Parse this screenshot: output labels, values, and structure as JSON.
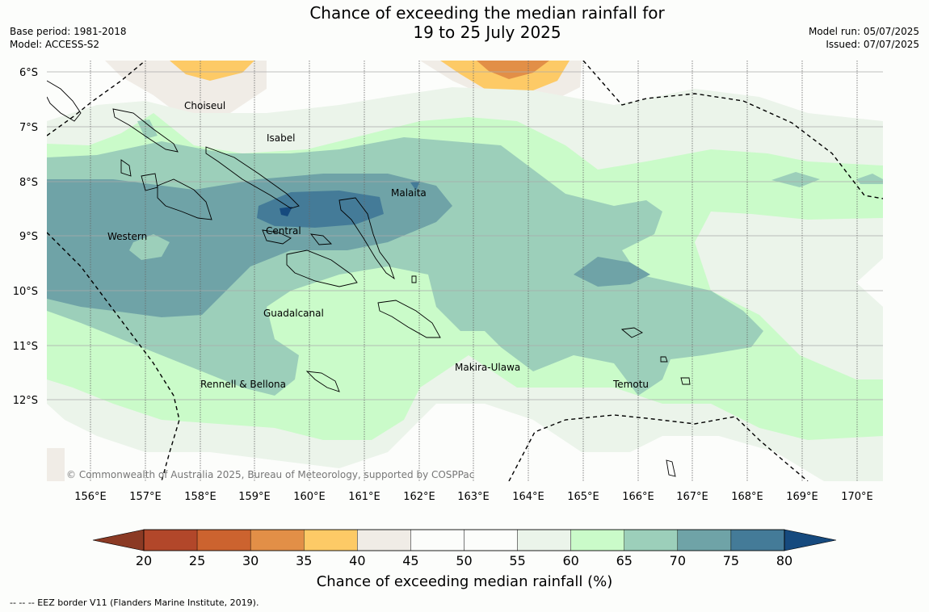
{
  "header": {
    "title_line1": "Chance of exceeding the median rainfall for",
    "title_line2": "19 to 25 July 2025",
    "base_period": "Base period: 1981-2018",
    "model": "Model: ACCESS-S2",
    "model_run": "Model run: 05/07/2025",
    "issued": "Issued: 07/07/2025"
  },
  "map": {
    "lat_labels": [
      "6°S",
      "7°S",
      "8°S",
      "9°S",
      "10°S",
      "11°S",
      "12°S"
    ],
    "lon_labels": [
      "156°E",
      "157°E",
      "158°E",
      "159°E",
      "160°E",
      "161°E",
      "162°E",
      "163°E",
      "164°E",
      "165°E",
      "166°E",
      "167°E",
      "168°E",
      "169°E",
      "170°E"
    ],
    "regions": [
      "Choiseul",
      "Isabel",
      "Malaita",
      "Western",
      "Central",
      "Guadalcanal",
      "Makira-Ulawa",
      "Rennell & Bellona",
      "Temotu"
    ],
    "copyright": "© Commonwealth of Australia 2025, Bureau of Meteorology, supported by COSPPac"
  },
  "colorbar": {
    "ticks": [
      "20",
      "25",
      "30",
      "35",
      "40",
      "45",
      "50",
      "55",
      "60",
      "65",
      "70",
      "75",
      "80"
    ],
    "low_color": "#8b3a24",
    "high_color": "#164a7e",
    "colors": [
      "#b2472a",
      "#cc632f",
      "#e28f47",
      "#fdca66",
      "#f0ece6",
      "#fcfdfb",
      "#fcfdfb",
      "#ebf4ea",
      "#cafbc9",
      "#9ccfba",
      "#6fa3a7",
      "#447b98"
    ],
    "title": "Chance of exceeding median rainfall (%)"
  },
  "footnote": "--  --  -- EEZ border V11 (Flanders Marine Institute, 2019)."
}
